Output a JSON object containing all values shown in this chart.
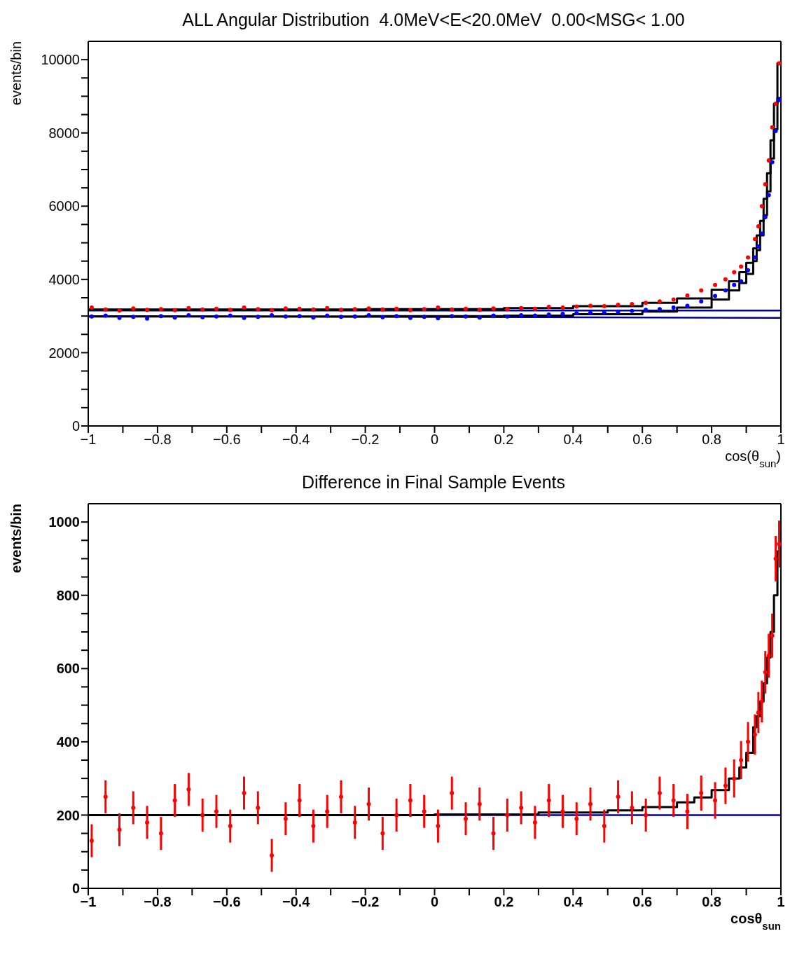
{
  "chart_data": [
    {
      "type": "scatter",
      "title": "ALL Angular Distribution  4.0MeV<E<20.0MeV  0.00<MSG< 1.00",
      "xlabel": "cos(θ$_{sun}$)",
      "ylabel": "events/bin",
      "legend": false,
      "xlim": [
        -1,
        1
      ],
      "xticks": [
        {
          "value": -1,
          "label": "−1"
        },
        {
          "value": -0.9,
          "label": null
        },
        {
          "value": -0.8,
          "label": "−0.8"
        },
        {
          "value": -0.7,
          "label": null
        },
        {
          "value": -0.6,
          "label": "−0.6"
        },
        {
          "value": -0.5,
          "label": null
        },
        {
          "value": -0.4,
          "label": "−0.4"
        },
        {
          "value": -0.3,
          "label": null
        },
        {
          "value": -0.2,
          "label": "−0.2"
        },
        {
          "value": -0.1,
          "label": null
        },
        0,
        {
          "value": 0.1,
          "label": null
        },
        0.2,
        {
          "value": 0.3,
          "label": null
        },
        0.4,
        {
          "value": 0.5,
          "label": null
        },
        0.6,
        {
          "value": 0.7,
          "label": null
        },
        0.8,
        {
          "value": 0.9,
          "label": null
        },
        1
      ],
      "ylim": [
        0,
        10500
      ],
      "yticks": [
        0,
        {
          "value": 500,
          "label": null
        },
        {
          "value": 1000,
          "label": null
        },
        {
          "value": 1500,
          "label": null
        },
        2000,
        {
          "value": 2500,
          "label": null
        },
        {
          "value": 3000,
          "label": null
        },
        {
          "value": 3500,
          "label": null
        },
        4000,
        {
          "value": 4500,
          "label": null
        },
        {
          "value": 5000,
          "label": null
        },
        {
          "value": 5500,
          "label": null
        },
        6000,
        {
          "value": 6500,
          "label": null
        },
        {
          "value": 7000,
          "label": null
        },
        {
          "value": 7500,
          "label": null
        },
        8000,
        {
          "value": 8500,
          "label": null
        },
        {
          "value": 9000,
          "label": null
        },
        {
          "value": 9500,
          "label": null
        },
        10000
      ],
      "series": [
        {
          "type": "line",
          "color": "#000099",
          "x": [
            -1,
            1
          ],
          "values": [
            3150,
            3150
          ]
        },
        {
          "type": "line",
          "color": "#000099",
          "x": [
            -1,
            1
          ],
          "values": [
            3000,
            2950
          ]
        },
        {
          "type": "step",
          "color": "#000000",
          "x": [
            -1,
            -0.6,
            -0.2,
            0.2,
            0.4,
            0.6,
            0.7,
            0.8,
            0.85,
            0.88,
            0.9,
            0.92,
            0.93,
            0.94,
            0.95,
            0.96,
            0.97,
            0.98,
            0.99,
            1
          ],
          "values": [
            3180,
            3180,
            3190,
            3220,
            3270,
            3360,
            3480,
            3720,
            3950,
            4200,
            4450,
            4850,
            5200,
            5600,
            6200,
            6900,
            7800,
            8800,
            9900,
            9900
          ]
        },
        {
          "type": "step",
          "color": "#000000",
          "x": [
            -1,
            -0.6,
            -0.2,
            0.2,
            0.4,
            0.6,
            0.7,
            0.8,
            0.85,
            0.88,
            0.9,
            0.92,
            0.93,
            0.94,
            0.95,
            0.96,
            0.97,
            0.98,
            0.99,
            1
          ],
          "values": [
            2990,
            2990,
            3000,
            3010,
            3050,
            3120,
            3230,
            3450,
            3700,
            3900,
            4150,
            4500,
            4800,
            5200,
            5750,
            6400,
            7300,
            8100,
            8950,
            8950
          ]
        },
        {
          "marker": "circle",
          "color": "#ff0000",
          "x": [
            -0.99,
            -0.95,
            -0.91,
            -0.87,
            -0.83,
            -0.79,
            -0.75,
            -0.71,
            -0.67,
            -0.63,
            -0.59,
            -0.55,
            -0.51,
            -0.47,
            -0.43,
            -0.39,
            -0.35,
            -0.31,
            -0.27,
            -0.23,
            -0.19,
            -0.15,
            -0.11,
            -0.07,
            -0.03,
            0.01,
            0.05,
            0.09,
            0.13,
            0.17,
            0.21,
            0.25,
            0.29,
            0.33,
            0.37,
            0.41,
            0.45,
            0.49,
            0.53,
            0.57,
            0.61,
            0.65,
            0.69,
            0.73,
            0.77,
            0.81,
            0.84,
            0.865,
            0.885,
            0.905,
            0.925,
            0.935,
            0.945,
            0.955,
            0.965,
            0.975,
            0.985,
            0.995
          ],
          "values": [
            3230,
            3180,
            3150,
            3210,
            3170,
            3190,
            3160,
            3220,
            3180,
            3200,
            3170,
            3230,
            3190,
            3160,
            3210,
            3200,
            3180,
            3220,
            3170,
            3190,
            3210,
            3180,
            3200,
            3160,
            3190,
            3230,
            3180,
            3200,
            3170,
            3210,
            3190,
            3220,
            3200,
            3250,
            3230,
            3260,
            3280,
            3270,
            3310,
            3330,
            3360,
            3400,
            3450,
            3560,
            3700,
            3850,
            4000,
            4200,
            4350,
            4600,
            5100,
            5450,
            6000,
            6600,
            7250,
            8150,
            8800,
            9900
          ]
        },
        {
          "marker": "circle",
          "color": "#0000ff",
          "x": [
            -0.99,
            -0.95,
            -0.91,
            -0.87,
            -0.83,
            -0.79,
            -0.75,
            -0.71,
            -0.67,
            -0.63,
            -0.59,
            -0.55,
            -0.51,
            -0.47,
            -0.43,
            -0.39,
            -0.35,
            -0.31,
            -0.27,
            -0.23,
            -0.19,
            -0.15,
            -0.11,
            -0.07,
            -0.03,
            0.01,
            0.05,
            0.09,
            0.13,
            0.17,
            0.21,
            0.25,
            0.29,
            0.33,
            0.37,
            0.41,
            0.45,
            0.49,
            0.53,
            0.57,
            0.61,
            0.65,
            0.69,
            0.73,
            0.77,
            0.81,
            0.84,
            0.865,
            0.885,
            0.905,
            0.925,
            0.935,
            0.945,
            0.955,
            0.965,
            0.975,
            0.985,
            0.995
          ],
          "values": [
            2990,
            3010,
            2950,
            2980,
            2930,
            3000,
            2960,
            3020,
            2970,
            2990,
            3010,
            2950,
            2980,
            3020,
            2990,
            3000,
            2960,
            3010,
            2980,
            2990,
            3020,
            2970,
            3000,
            2950,
            2980,
            2940,
            3000,
            2990,
            2960,
            3010,
            2990,
            3020,
            3010,
            3040,
            3060,
            3080,
            3090,
            3100,
            3120,
            3140,
            3170,
            3190,
            3230,
            3280,
            3400,
            3550,
            3700,
            3850,
            3950,
            4250,
            4600,
            4900,
            5250,
            5700,
            6300,
            7200,
            8050,
            8900
          ]
        }
      ]
    },
    {
      "type": "scatter",
      "title": "Difference in Final Sample Events",
      "xlabel": "cosθ$_{sun}$",
      "ylabel": "events/bin",
      "legend": false,
      "xlim": [
        -1,
        1
      ],
      "xticks": [
        {
          "value": -1,
          "label": "−1"
        },
        {
          "value": -0.9,
          "label": null
        },
        {
          "value": -0.8,
          "label": "−0.8"
        },
        {
          "value": -0.7,
          "label": null
        },
        {
          "value": -0.6,
          "label": "−0.6"
        },
        {
          "value": -0.5,
          "label": null
        },
        {
          "value": -0.4,
          "label": "−0.4"
        },
        {
          "value": -0.3,
          "label": null
        },
        {
          "value": -0.2,
          "label": "−0.2"
        },
        {
          "value": -0.1,
          "label": null
        },
        0,
        {
          "value": 0.1,
          "label": null
        },
        0.2,
        {
          "value": 0.3,
          "label": null
        },
        0.4,
        {
          "value": 0.5,
          "label": null
        },
        0.6,
        {
          "value": 0.7,
          "label": null
        },
        0.8,
        {
          "value": 0.9,
          "label": null
        },
        1
      ],
      "ylim": [
        0,
        1050
      ],
      "yticks": [
        0,
        {
          "value": 50,
          "label": null
        },
        {
          "value": 100,
          "label": null
        },
        {
          "value": 150,
          "label": null
        },
        200,
        {
          "value": 250,
          "label": null
        },
        {
          "value": 300,
          "label": null
        },
        {
          "value": 350,
          "label": null
        },
        400,
        {
          "value": 450,
          "label": null
        },
        {
          "value": 500,
          "label": null
        },
        {
          "value": 550,
          "label": null
        },
        600,
        {
          "value": 650,
          "label": null
        },
        {
          "value": 700,
          "label": null
        },
        {
          "value": 750,
          "label": null
        },
        800,
        {
          "value": 850,
          "label": null
        },
        {
          "value": 900,
          "label": null
        },
        {
          "value": 950,
          "label": null
        },
        1000
      ],
      "series": [
        {
          "type": "line",
          "color": "#000099",
          "x": [
            -1,
            1
          ],
          "values": [
            200,
            200
          ]
        },
        {
          "type": "step",
          "color": "#000000",
          "x": [
            -1,
            0,
            0.3,
            0.5,
            0.6,
            0.7,
            0.75,
            0.8,
            0.85,
            0.88,
            0.9,
            0.92,
            0.93,
            0.94,
            0.95,
            0.96,
            0.97,
            0.98,
            0.99,
            1
          ],
          "values": [
            200,
            202,
            207,
            213,
            222,
            235,
            248,
            268,
            300,
            330,
            370,
            440,
            470,
            510,
            560,
            630,
            700,
            800,
            920,
            920
          ]
        },
        {
          "marker": "circle",
          "color": "#ff0000",
          "x": [
            -0.99,
            -0.95,
            -0.91,
            -0.87,
            -0.83,
            -0.79,
            -0.75,
            -0.71,
            -0.67,
            -0.63,
            -0.59,
            -0.55,
            -0.51,
            -0.47,
            -0.43,
            -0.39,
            -0.35,
            -0.31,
            -0.27,
            -0.23,
            -0.19,
            -0.15,
            -0.11,
            -0.07,
            -0.03,
            0.01,
            0.05,
            0.09,
            0.13,
            0.17,
            0.21,
            0.25,
            0.29,
            0.33,
            0.37,
            0.41,
            0.45,
            0.49,
            0.53,
            0.57,
            0.61,
            0.65,
            0.69,
            0.73,
            0.77,
            0.81,
            0.84,
            0.865,
            0.885,
            0.905,
            0.925,
            0.935,
            0.945,
            0.955,
            0.965,
            0.975,
            0.985,
            0.995
          ],
          "values": [
            130,
            250,
            160,
            220,
            180,
            150,
            240,
            270,
            200,
            210,
            170,
            260,
            220,
            90,
            190,
            240,
            170,
            210,
            250,
            180,
            230,
            150,
            200,
            240,
            210,
            170,
            260,
            190,
            230,
            150,
            200,
            220,
            180,
            240,
            210,
            190,
            230,
            170,
            250,
            220,
            200,
            260,
            240,
            210,
            260,
            240,
            280,
            300,
            350,
            400,
            420,
            480,
            510,
            590,
            635,
            690,
            900,
            940
          ],
          "errors": [
            45,
            45,
            45,
            45,
            45,
            45,
            45,
            45,
            45,
            45,
            45,
            45,
            45,
            45,
            45,
            45,
            45,
            45,
            45,
            45,
            45,
            45,
            45,
            45,
            45,
            45,
            45,
            45,
            45,
            45,
            45,
            45,
            45,
            45,
            45,
            45,
            45,
            45,
            45,
            45,
            45,
            45,
            45,
            48,
            48,
            50,
            50,
            52,
            52,
            54,
            55,
            56,
            57,
            58,
            60,
            60,
            62,
            64
          ]
        }
      ]
    }
  ]
}
